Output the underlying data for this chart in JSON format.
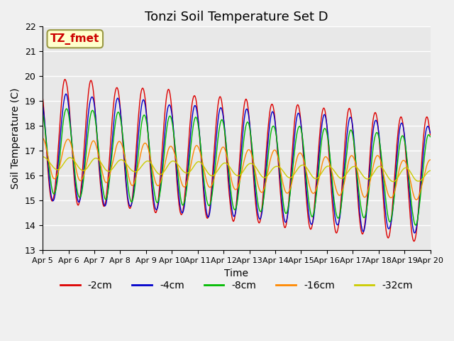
{
  "title": "Tonzi Soil Temperature Set D",
  "xlabel": "Time",
  "ylabel": "Soil Temperature (C)",
  "ylim": [
    13.0,
    22.0
  ],
  "yticks": [
    13.0,
    14.0,
    15.0,
    16.0,
    17.0,
    18.0,
    19.0,
    20.0,
    21.0,
    22.0
  ],
  "colors": {
    "-2cm": "#dd0000",
    "-4cm": "#0000cc",
    "-8cm": "#00bb00",
    "-16cm": "#ff8800",
    "-32cm": "#cccc00"
  },
  "legend_labels": [
    "-2cm",
    "-4cm",
    "-8cm",
    "-16cm",
    "-32cm"
  ],
  "annotation_text": "TZ_fmet",
  "annotation_box_facecolor": "#ffffcc",
  "annotation_box_edgecolor": "#999944",
  "background_color": "#e8e8e8",
  "grid_color": "#ffffff",
  "title_fontsize": 13,
  "axis_fontsize": 10,
  "tick_fontsize": 9,
  "legend_fontsize": 10,
  "xtick_labels": [
    "Apr 5",
    "Apr 6",
    "Apr 7",
    "Apr 8",
    "Apr 9",
    "Apr 10",
    "Apr 11",
    "Apr 12",
    "Apr 13",
    "Apr 14",
    "Apr 15",
    "Apr 16",
    "Apr 17",
    "Apr 18",
    "Apr 19",
    "Apr 20"
  ],
  "n_points_per_day": 48,
  "n_days": 15
}
